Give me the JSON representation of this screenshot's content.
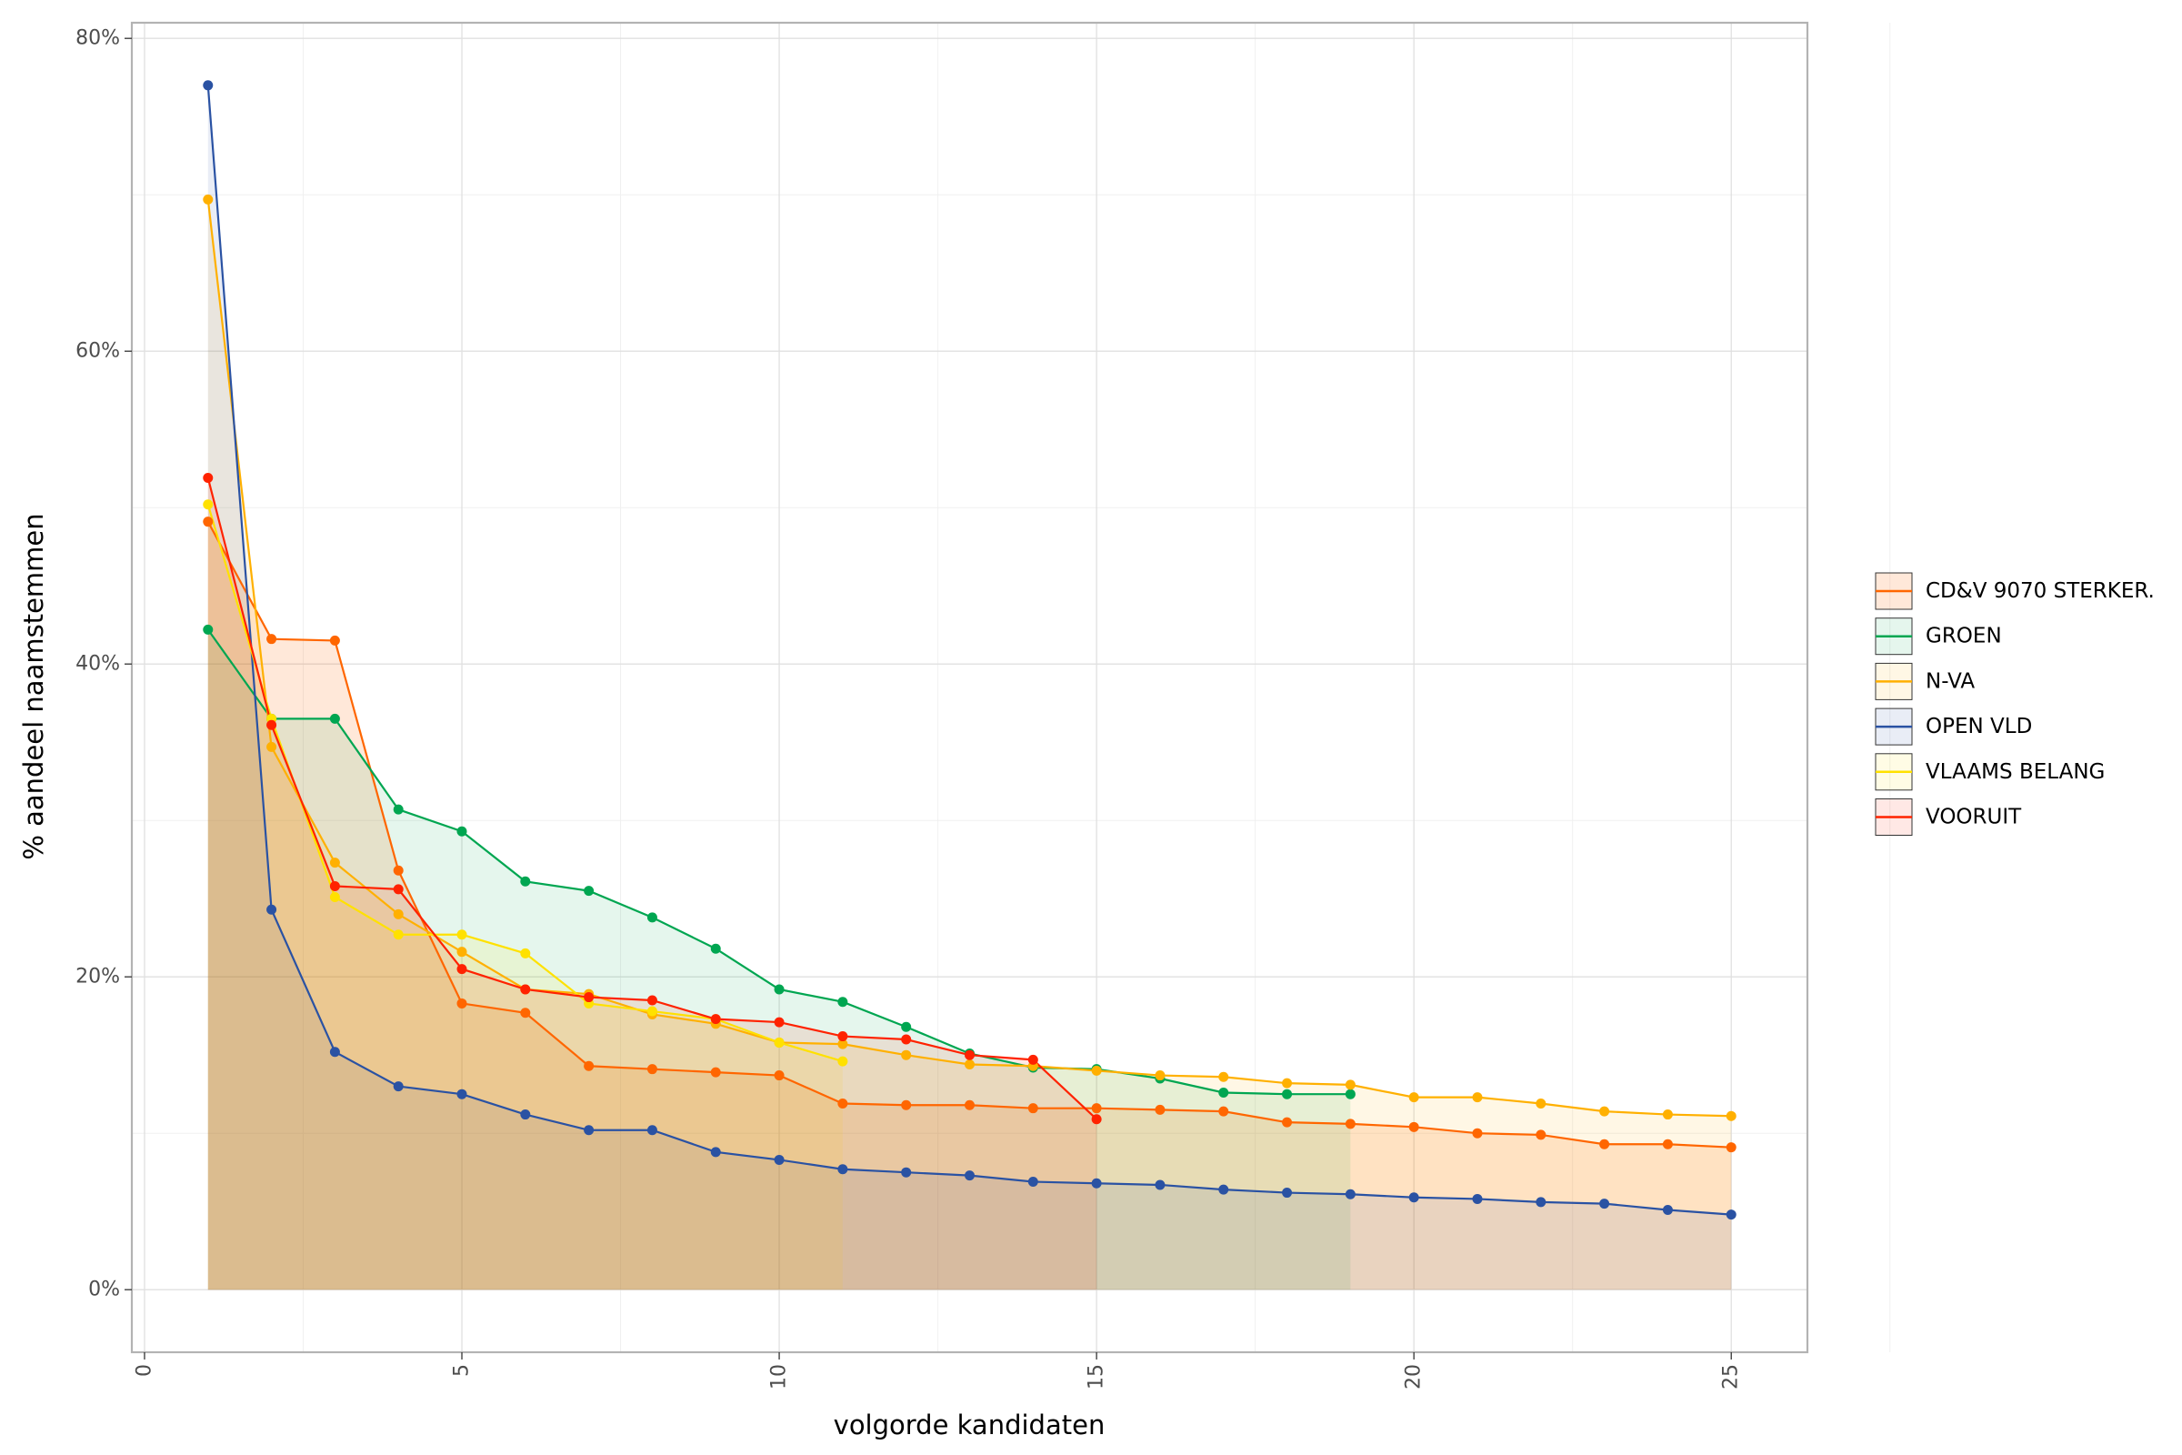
{
  "chart_data": {
    "type": "area",
    "xlabel": "volgorde kandidaten",
    "ylabel": "% aandeel naamstemmen",
    "xlim": [
      -0.2,
      26.2
    ],
    "ylim": [
      -4,
      81
    ],
    "x_ticks": [
      0,
      5,
      10,
      15,
      20,
      25
    ],
    "y_ticks": [
      0,
      20,
      40,
      60,
      80
    ],
    "y_tick_labels": [
      "0%",
      "20%",
      "40%",
      "60%",
      "80%"
    ],
    "grid": true,
    "legend_position": "right",
    "series": [
      {
        "name": "CD&V 9070 STERKER.",
        "color": "#ff6600",
        "fill_opacity": 0.15,
        "x": [
          1,
          2,
          3,
          4,
          5,
          6,
          7,
          8,
          9,
          10,
          11,
          12,
          13,
          14,
          15,
          16,
          17,
          18,
          19,
          20,
          21,
          22,
          23,
          24,
          25
        ],
        "values": [
          49.1,
          41.6,
          41.5,
          26.8,
          18.3,
          17.7,
          14.3,
          14.1,
          13.9,
          13.7,
          11.9,
          11.8,
          11.8,
          11.6,
          11.6,
          11.5,
          11.4,
          10.7,
          10.6,
          10.4,
          10.0,
          9.9,
          9.3,
          9.3,
          9.1
        ]
      },
      {
        "name": "GROEN",
        "color": "#00a651",
        "fill_opacity": 0.1,
        "x": [
          1,
          2,
          3,
          4,
          5,
          6,
          7,
          8,
          9,
          10,
          11,
          12,
          13,
          14,
          15,
          16,
          17,
          18,
          19
        ],
        "values": [
          42.2,
          36.5,
          36.5,
          30.7,
          29.3,
          26.1,
          25.5,
          23.8,
          21.8,
          19.2,
          18.4,
          16.8,
          15.1,
          14.2,
          14.1,
          13.5,
          12.6,
          12.5,
          12.5
        ]
      },
      {
        "name": "N-VA",
        "color": "#ffb000",
        "fill_opacity": 0.1,
        "x": [
          1,
          2,
          3,
          4,
          5,
          6,
          7,
          8,
          9,
          10,
          11,
          12,
          13,
          14,
          15,
          16,
          17,
          18,
          19,
          20,
          21,
          22,
          23,
          24,
          25
        ],
        "values": [
          69.7,
          34.7,
          27.3,
          24.0,
          21.6,
          19.2,
          18.9,
          17.6,
          17.0,
          15.8,
          15.7,
          15.0,
          14.4,
          14.3,
          14.0,
          13.7,
          13.6,
          13.2,
          13.1,
          12.3,
          12.3,
          11.9,
          11.4,
          11.2,
          11.1
        ]
      },
      {
        "name": "OPEN VLD",
        "color": "#2a52a3",
        "fill_opacity": 0.1,
        "x": [
          1,
          2,
          3,
          4,
          5,
          6,
          7,
          8,
          9,
          10,
          11,
          12,
          13,
          14,
          15,
          16,
          17,
          18,
          19,
          20,
          21,
          22,
          23,
          24,
          25
        ],
        "values": [
          77.0,
          24.3,
          15.2,
          13.0,
          12.5,
          11.2,
          10.2,
          10.2,
          8.8,
          8.3,
          7.7,
          7.5,
          7.3,
          6.9,
          6.8,
          6.7,
          6.4,
          6.2,
          6.1,
          5.9,
          5.8,
          5.6,
          5.5,
          5.1,
          4.8
        ]
      },
      {
        "name": "VLAAMS BELANG",
        "color": "#ffe100",
        "fill_opacity": 0.1,
        "x": [
          1,
          2,
          3,
          4,
          5,
          6,
          7,
          8,
          9,
          10,
          11
        ],
        "values": [
          50.2,
          36.5,
          25.1,
          22.7,
          22.7,
          21.5,
          18.3,
          17.8,
          17.3,
          15.8,
          14.6
        ]
      },
      {
        "name": "VOORUIT",
        "color": "#ff2200",
        "fill_opacity": 0.1,
        "x": [
          1,
          2,
          3,
          4,
          5,
          6,
          7,
          8,
          9,
          10,
          11,
          12,
          13,
          14,
          15
        ],
        "values": [
          51.9,
          36.1,
          25.8,
          25.6,
          20.5,
          19.2,
          18.7,
          18.5,
          17.3,
          17.1,
          16.2,
          16.0,
          15.0,
          14.7,
          10.9
        ]
      }
    ]
  }
}
